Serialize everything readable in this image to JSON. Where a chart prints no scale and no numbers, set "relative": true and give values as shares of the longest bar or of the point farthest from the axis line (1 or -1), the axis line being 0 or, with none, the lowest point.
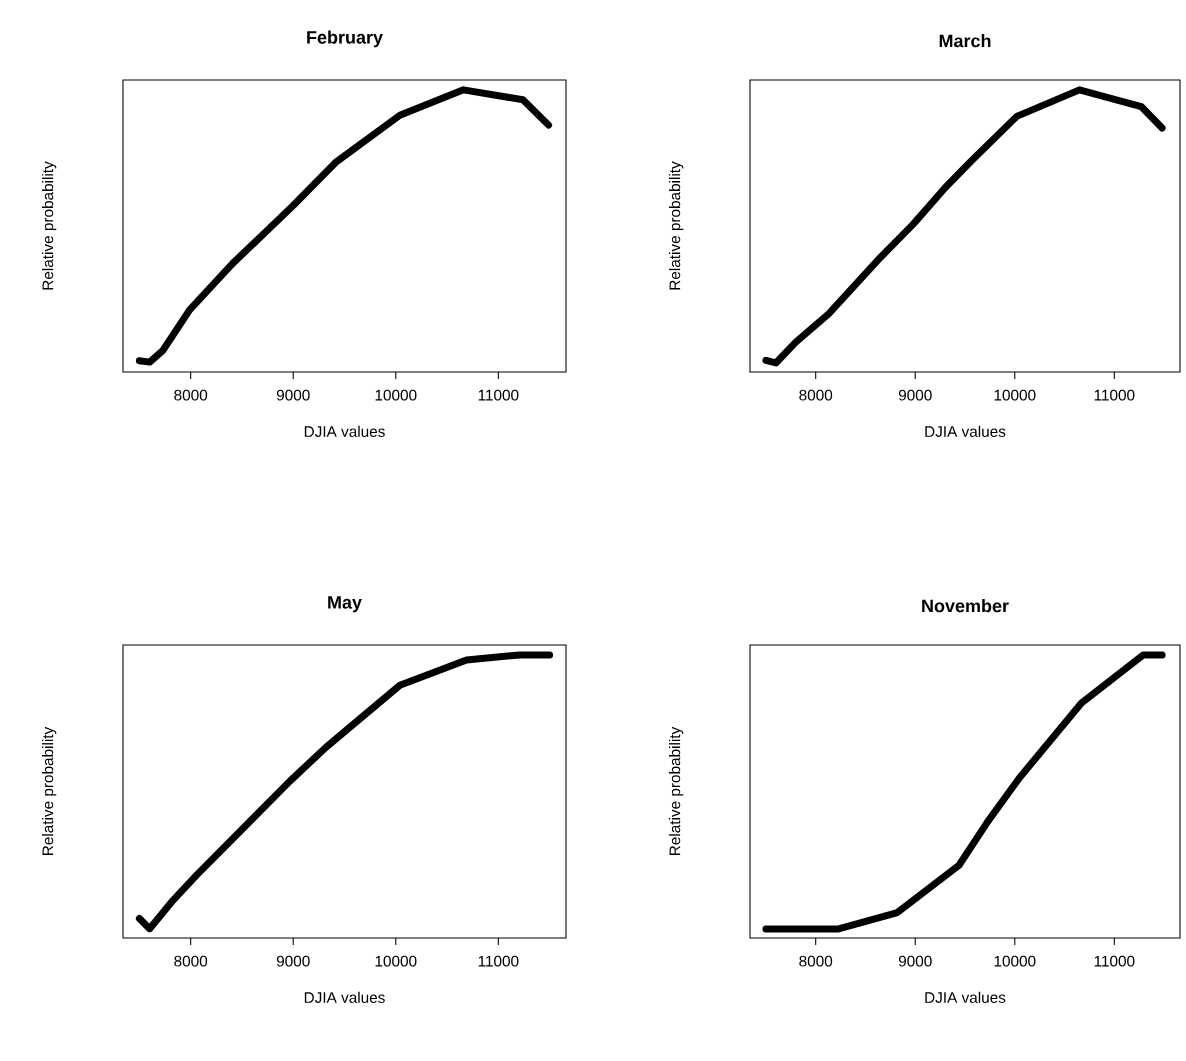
{
  "chart_data": [
    {
      "type": "line",
      "title": "February",
      "xlabel": "DJIA values",
      "ylabel": "Relative probability",
      "relative": true,
      "color": "#000000",
      "xlim": [
        7340,
        11660
      ],
      "xticks": [
        8000,
        9000,
        10000,
        11000
      ],
      "x": [
        7500,
        7600,
        7730,
        7990,
        8410,
        9000,
        9420,
        10040,
        10660,
        11240,
        11490
      ],
      "values": [
        0.04,
        0.035,
        0.077,
        0.22,
        0.385,
        0.59,
        0.745,
        0.91,
        1.0,
        0.965,
        0.875
      ]
    },
    {
      "type": "line",
      "title": "March",
      "xlabel": "DJIA values",
      "ylabel": "Relative probability",
      "relative": true,
      "color": "#000000",
      "xlim": [
        7340,
        11660
      ],
      "xticks": [
        8000,
        9000,
        10000,
        11000
      ],
      "x": [
        7500,
        7600,
        7800,
        8130,
        8650,
        8980,
        9300,
        9560,
        10020,
        10650,
        11270,
        11480
      ],
      "values": [
        0.041,
        0.032,
        0.106,
        0.206,
        0.406,
        0.524,
        0.653,
        0.747,
        0.906,
        1.0,
        0.941,
        0.865
      ]
    },
    {
      "type": "line",
      "title": "May",
      "xlabel": "DJIA values",
      "ylabel": "Relative probability",
      "relative": true,
      "color": "#000000",
      "xlim": [
        7340,
        11660
      ],
      "xticks": [
        8000,
        9000,
        10000,
        11000
      ],
      "x": [
        7500,
        7600,
        7830,
        8060,
        8970,
        9320,
        10040,
        10690,
        11210,
        11500
      ],
      "values": [
        0.069,
        0.033,
        0.134,
        0.223,
        0.555,
        0.674,
        0.893,
        0.982,
        1.0,
        1.0
      ]
    },
    {
      "type": "line",
      "title": "November",
      "xlabel": "DJIA values",
      "ylabel": "Relative probability",
      "relative": true,
      "color": "#000000",
      "xlim": [
        7340,
        11660
      ],
      "xticks": [
        8000,
        9000,
        10000,
        11000
      ],
      "x": [
        7500,
        8230,
        8820,
        9440,
        9730,
        10050,
        10670,
        11290,
        11480
      ],
      "values": [
        0.032,
        0.032,
        0.09,
        0.257,
        0.412,
        0.567,
        0.83,
        1.0,
        1.0
      ]
    }
  ]
}
